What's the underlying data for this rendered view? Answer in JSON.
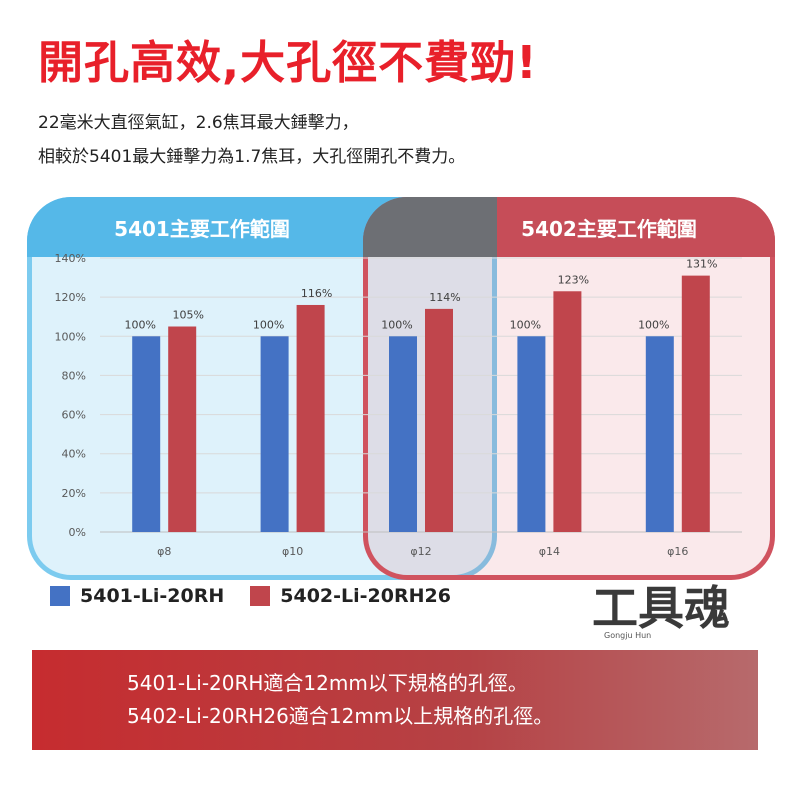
{
  "headline": "開孔高效,大孔徑不費勁!",
  "intro": {
    "line1": "22毫米大直徑氣缸，2.6焦耳最大錘擊力，",
    "line2": "相較於5401最大錘擊力為1.7焦耳，大孔徑開孔不費力。"
  },
  "regions": {
    "a_label": "5401主要工作範圍",
    "b_label": "5402主要工作範圍"
  },
  "colors": {
    "series_a": "#4472c4",
    "series_b": "#c0454c",
    "headline": "#e8202a"
  },
  "chart_data": {
    "type": "bar",
    "title": "",
    "xlabel": "",
    "ylabel": "",
    "ylim": [
      0,
      140
    ],
    "yticks": [
      "0%",
      "20%",
      "40%",
      "60%",
      "80%",
      "100%",
      "120%",
      "140%"
    ],
    "categories": [
      "φ8",
      "φ10",
      "φ12",
      "φ14",
      "φ16"
    ],
    "series": [
      {
        "name": "5401-Li-20RH",
        "values": [
          100,
          100,
          100,
          100,
          100
        ],
        "labels": [
          "100%",
          "100%",
          "100%",
          "100%",
          "100%"
        ]
      },
      {
        "name": "5402-Li-20RH26",
        "values": [
          105,
          116,
          114,
          123,
          131
        ],
        "labels": [
          "105%",
          "116%",
          "114%",
          "123%",
          "131%"
        ]
      }
    ],
    "grid": true,
    "legend": "bottom-left"
  },
  "brand": {
    "logo_text": "工具魂",
    "logo_subtext": "Gongju Hun"
  },
  "banner": {
    "line1": "5401-Li-20RH適合12mm以下規格的孔徑。",
    "line2": "5402-Li-20RH26適合12mm以上規格的孔徑。"
  }
}
